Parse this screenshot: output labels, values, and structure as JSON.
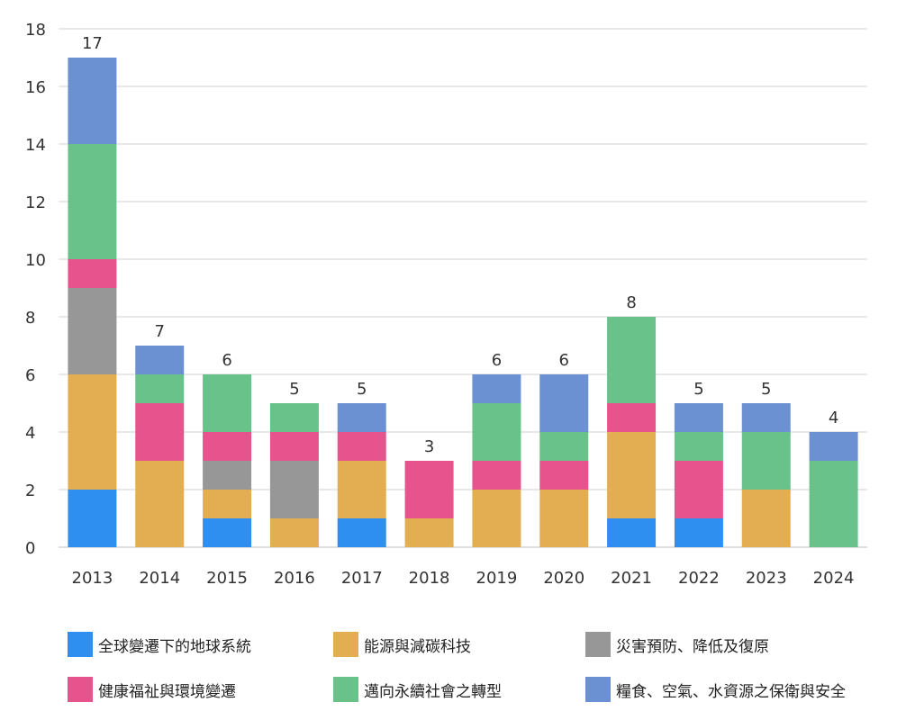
{
  "chart_data": {
    "type": "bar",
    "stacked": true,
    "categories": [
      "2013",
      "2014",
      "2015",
      "2016",
      "2017",
      "2018",
      "2019",
      "2020",
      "2021",
      "2022",
      "2023",
      "2024"
    ],
    "series": [
      {
        "name": "全球變遷下的地球系統",
        "color": "#2f8ff0",
        "values": [
          2,
          0,
          1,
          0,
          1,
          0,
          0,
          0,
          1,
          1,
          0,
          0
        ]
      },
      {
        "name": "能源與減碳科技",
        "color": "#e3ad52",
        "values": [
          4,
          3,
          1,
          1,
          2,
          1,
          2,
          2,
          3,
          0,
          2,
          0
        ]
      },
      {
        "name": "災害預防、降低及復原",
        "color": "#979797",
        "values": [
          3,
          0,
          1,
          2,
          0,
          0,
          0,
          0,
          0,
          0,
          0,
          0
        ]
      },
      {
        "name": "健康福祉與環境變遷",
        "color": "#e7538d",
        "values": [
          1,
          2,
          1,
          1,
          1,
          2,
          1,
          1,
          1,
          2,
          0,
          0
        ]
      },
      {
        "name": "邁向永續社會之轉型",
        "color": "#68c28a",
        "values": [
          4,
          1,
          2,
          1,
          0,
          0,
          2,
          1,
          3,
          1,
          2,
          3
        ]
      },
      {
        "name": "糧食、空氣、水資源之保衛與安全",
        "color": "#6b91d2",
        "values": [
          3,
          1,
          0,
          0,
          1,
          0,
          1,
          2,
          0,
          1,
          1,
          1
        ]
      }
    ],
    "totals": [
      "17",
      "7",
      "6",
      "5",
      "5",
      "3",
      "6",
      "6",
      "8",
      "5",
      "5",
      "4"
    ],
    "y_ticks": [
      "0",
      "2",
      "4",
      "6",
      "8",
      "10",
      "12",
      "14",
      "16",
      "18"
    ],
    "ylim": [
      0,
      18
    ],
    "grid": true,
    "legend_position": "bottom",
    "title": "",
    "xlabel": "",
    "ylabel": ""
  }
}
